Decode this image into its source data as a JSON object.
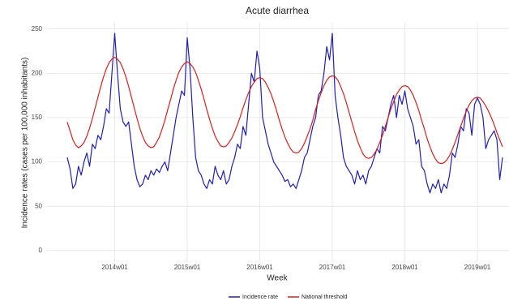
{
  "chart_data": {
    "type": "line",
    "title": "Acute diarrhea",
    "x_label": "Week",
    "y_label": "Incidence rates (cases per 100,000 inhabitants)",
    "categories": [
      null,
      null,
      null,
      null,
      null,
      null,
      null,
      null,
      null,
      null,
      null,
      null,
      null,
      null,
      null,
      null,
      null,
      "2014w01",
      null,
      null,
      null,
      null,
      null,
      null,
      null,
      null,
      null,
      null,
      null,
      null,
      null,
      null,
      null,
      null,
      null,
      null,
      null,
      null,
      null,
      null,
      null,
      null,
      null,
      "2015w01",
      null,
      null,
      null,
      null,
      null,
      null,
      null,
      null,
      null,
      null,
      null,
      null,
      null,
      null,
      null,
      null,
      null,
      null,
      null,
      null,
      null,
      null,
      null,
      null,
      null,
      "2016w01",
      null,
      null,
      null,
      null,
      null,
      null,
      null,
      null,
      null,
      null,
      null,
      null,
      null,
      null,
      null,
      null,
      null,
      null,
      null,
      null,
      null,
      null,
      null,
      null,
      null,
      "2017w01",
      null,
      null,
      null,
      null,
      null,
      null,
      null,
      null,
      null,
      null,
      null,
      null,
      null,
      null,
      null,
      null,
      null,
      null,
      null,
      null,
      null,
      null,
      null,
      null,
      null,
      "2018w01",
      null,
      null,
      null,
      null,
      null,
      null,
      null,
      null,
      null,
      null,
      null,
      null,
      null,
      null,
      null,
      null,
      null,
      null,
      null,
      null,
      null,
      null,
      null,
      null,
      null,
      "2019w01",
      null,
      null,
      null,
      null,
      null,
      null,
      null,
      null,
      null
    ],
    "series": [
      {
        "name": "Incidence rate",
        "color": "#1f1fb4",
        "values": [
          105,
          92,
          70,
          75,
          95,
          85,
          100,
          110,
          95,
          120,
          115,
          130,
          125,
          140,
          160,
          155,
          200,
          245,
          200,
          160,
          145,
          140,
          145,
          120,
          95,
          80,
          72,
          75,
          85,
          80,
          90,
          85,
          92,
          88,
          95,
          100,
          90,
          110,
          130,
          150,
          165,
          180,
          175,
          240,
          205,
          150,
          105,
          90,
          85,
          75,
          70,
          80,
          75,
          95,
          85,
          80,
          90,
          75,
          80,
          95,
          105,
          120,
          115,
          140,
          130,
          165,
          200,
          190,
          225,
          205,
          150,
          135,
          120,
          110,
          100,
          95,
          90,
          85,
          78,
          80,
          72,
          75,
          70,
          80,
          90,
          105,
          110,
          125,
          140,
          150,
          175,
          180,
          200,
          230,
          215,
          245,
          175,
          150,
          130,
          105,
          95,
          90,
          85,
          75,
          90,
          80,
          85,
          75,
          90,
          95,
          105,
          115,
          110,
          140,
          135,
          150,
          165,
          175,
          150,
          175,
          165,
          180,
          160,
          150,
          140,
          120,
          125,
          95,
          90,
          75,
          65,
          75,
          70,
          80,
          65,
          75,
          70,
          85,
          110,
          105,
          120,
          140,
          135,
          160,
          155,
          130,
          165,
          172,
          165,
          150,
          115,
          125,
          130,
          135,
          125,
          80,
          105
        ]
      },
      {
        "name": "National threshold",
        "color": "#d62020",
        "values": [
          145,
          135,
          125,
          119,
          116,
          118,
          122,
          129,
          138,
          149,
          161,
          173,
          185,
          196,
          205,
          212,
          216,
          218,
          216,
          212,
          205,
          196,
          185,
          173,
          161,
          149,
          138,
          129,
          122,
          118,
          116,
          117,
          122,
          128,
          137,
          147,
          159,
          170,
          182,
          192,
          201,
          207,
          211,
          213,
          211,
          207,
          201,
          192,
          182,
          171,
          159,
          148,
          138,
          129,
          123,
          118,
          117,
          118,
          122,
          127,
          134,
          142,
          151,
          161,
          170,
          178,
          185,
          190,
          194,
          195,
          194,
          190,
          184,
          177,
          168,
          158,
          147,
          137,
          128,
          121,
          115,
          111,
          110,
          111,
          115,
          121,
          129,
          137,
          147,
          159,
          169,
          178,
          186,
          192,
          196,
          197,
          196,
          192,
          185,
          177,
          167,
          156,
          145,
          134,
          124,
          116,
          109,
          105,
          104,
          105,
          109,
          114,
          122,
          130,
          140,
          150,
          160,
          168,
          176,
          181,
          185,
          186,
          185,
          181,
          175,
          167,
          158,
          147,
          137,
          126,
          117,
          109,
          103,
          99,
          98,
          99,
          102,
          107,
          114,
          122,
          131,
          140,
          149,
          157,
          164,
          169,
          172,
          173,
          172,
          168,
          163,
          157,
          150,
          142,
          133,
          125,
          117
        ]
      }
    ],
    "ylim": [
      -13,
      257
    ],
    "yticks": [
      0,
      50,
      100,
      150,
      200,
      250
    ],
    "grid": true,
    "legend": "bottom"
  }
}
